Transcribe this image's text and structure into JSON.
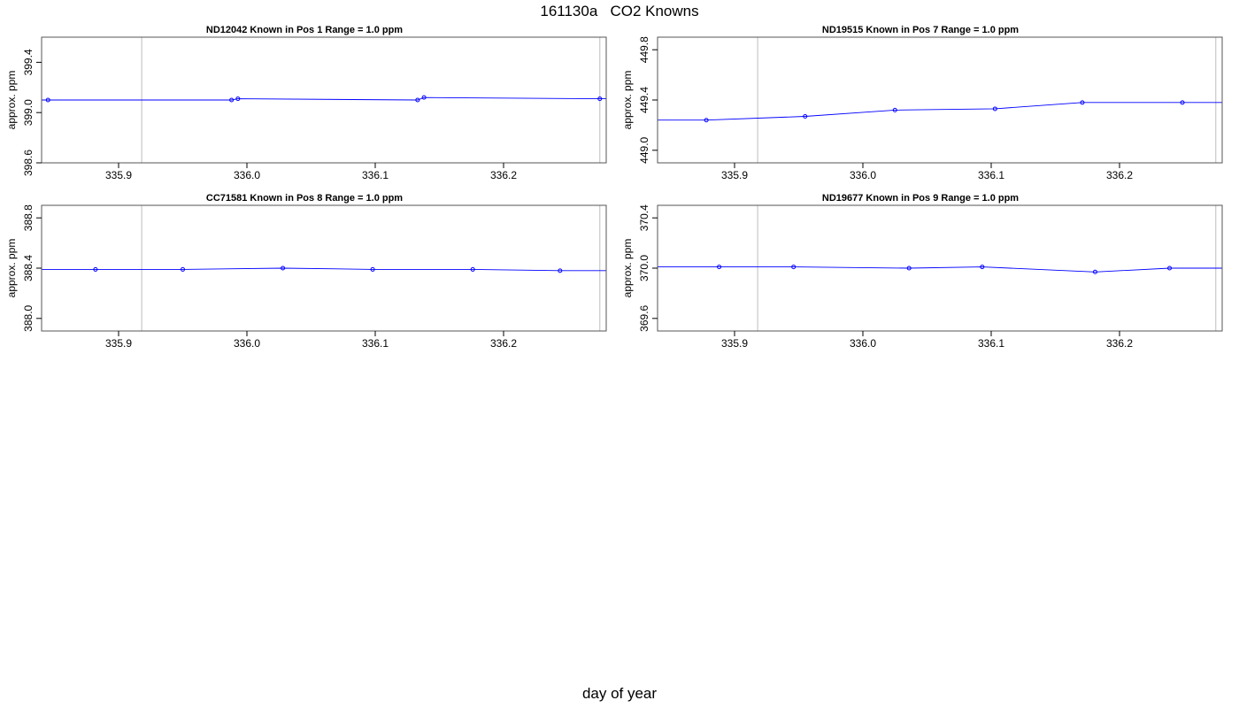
{
  "figure": {
    "title": "161130a   CO2 Knowns",
    "xlabel": "day of year"
  },
  "chart_data": [
    {
      "type": "line",
      "title": "ND12042    Known in Pos 1         Range = 1.0 ppm",
      "ylabel": "approx. ppm",
      "xlim": [
        335.84,
        336.28
      ],
      "ylim": [
        398.6,
        399.6
      ],
      "xticks": [
        "335.9",
        "336.0",
        "336.1",
        "336.2"
      ],
      "yticks": [
        "398.6",
        "399.0",
        "399.4"
      ],
      "vlines": [
        335.918,
        336.275
      ],
      "grid": false,
      "line": {
        "x": [
          335.84,
          335.845,
          335.988,
          335.993,
          336.133,
          336.138,
          336.275,
          336.28
        ],
        "y": [
          399.1,
          399.1,
          399.1,
          399.11,
          399.1,
          399.12,
          399.11,
          399.11
        ]
      },
      "points": {
        "x": [
          335.845,
          335.988,
          335.993,
          336.133,
          336.138,
          336.275
        ],
        "y": [
          399.1,
          399.1,
          399.11,
          399.1,
          399.12,
          399.11
        ]
      },
      "colors": {
        "series": "#0000ff",
        "vline": "#c8c8c8",
        "axis": "#000000"
      }
    },
    {
      "type": "line",
      "title": "ND19515    Known in Pos 7         Range = 1.0 ppm",
      "ylabel": "approx. ppm",
      "xlim": [
        335.84,
        336.28
      ],
      "ylim": [
        448.9,
        449.9
      ],
      "xticks": [
        "335.9",
        "336.0",
        "336.1",
        "336.2"
      ],
      "yticks": [
        "449.0",
        "449.4",
        "449.8"
      ],
      "vlines": [
        335.918,
        336.275
      ],
      "grid": false,
      "line": {
        "x": [
          335.84,
          335.878,
          335.955,
          336.025,
          336.103,
          336.171,
          336.249,
          336.28
        ],
        "y": [
          449.24,
          449.24,
          449.27,
          449.32,
          449.33,
          449.38,
          449.38,
          449.38
        ]
      },
      "points": {
        "x": [
          335.878,
          335.955,
          336.025,
          336.103,
          336.171,
          336.249
        ],
        "y": [
          449.24,
          449.27,
          449.32,
          449.33,
          449.38,
          449.38
        ]
      },
      "colors": {
        "series": "#0000ff",
        "vline": "#c8c8c8",
        "axis": "#000000"
      }
    },
    {
      "type": "line",
      "title": "CC71581    Known in Pos 8         Range = 1.0 ppm",
      "ylabel": "approx. ppm",
      "xlim": [
        335.84,
        336.28
      ],
      "ylim": [
        387.9,
        388.9
      ],
      "xticks": [
        "335.9",
        "336.0",
        "336.1",
        "336.2"
      ],
      "yticks": [
        "388.0",
        "388.4",
        "388.8"
      ],
      "vlines": [
        335.918,
        336.275
      ],
      "grid": false,
      "line": {
        "x": [
          335.84,
          335.882,
          335.95,
          336.028,
          336.098,
          336.176,
          336.244,
          336.28
        ],
        "y": [
          388.39,
          388.39,
          388.39,
          388.4,
          388.39,
          388.39,
          388.38,
          388.38
        ]
      },
      "points": {
        "x": [
          335.882,
          335.95,
          336.028,
          336.098,
          336.176,
          336.244
        ],
        "y": [
          388.39,
          388.39,
          388.4,
          388.39,
          388.39,
          388.38
        ]
      },
      "colors": {
        "series": "#0000ff",
        "vline": "#c8c8c8",
        "axis": "#000000"
      }
    },
    {
      "type": "line",
      "title": "ND19677    Known in Pos 9         Range = 1.0 ppm",
      "ylabel": "approx. ppm",
      "xlim": [
        335.84,
        336.28
      ],
      "ylim": [
        369.5,
        370.5
      ],
      "xticks": [
        "335.9",
        "336.0",
        "336.1",
        "336.2"
      ],
      "yticks": [
        "369.6",
        "370.0",
        "370.4"
      ],
      "vlines": [
        335.918,
        336.275
      ],
      "grid": false,
      "line": {
        "x": [
          335.84,
          335.888,
          335.946,
          336.036,
          336.093,
          336.181,
          336.239,
          336.28
        ],
        "y": [
          370.01,
          370.01,
          370.01,
          370.0,
          370.01,
          369.97,
          370.0,
          370.0
        ]
      },
      "points": {
        "x": [
          335.888,
          335.946,
          336.036,
          336.093,
          336.181,
          336.239
        ],
        "y": [
          370.01,
          370.01,
          370.0,
          370.01,
          369.97,
          370.0
        ]
      },
      "colors": {
        "series": "#0000ff",
        "vline": "#c8c8c8",
        "axis": "#000000"
      }
    }
  ]
}
